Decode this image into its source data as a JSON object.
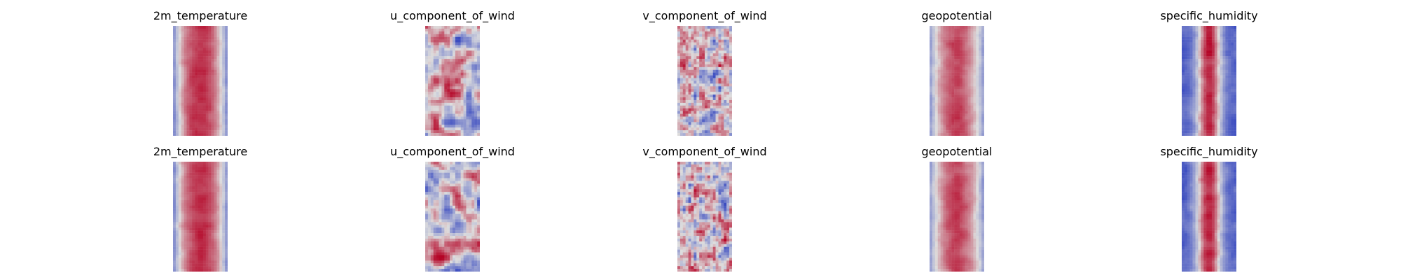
{
  "figure": {
    "rows": [
      {
        "panels": [
          {
            "title": "2m_temperature",
            "style": "temp"
          },
          {
            "title": "u_component_of_wind",
            "style": "uwind"
          },
          {
            "title": "v_component_of_wind",
            "style": "vwind"
          },
          {
            "title": "geopotential",
            "style": "geo"
          },
          {
            "title": "specific_humidity",
            "style": "hum"
          }
        ]
      },
      {
        "panels": [
          {
            "title": "2m_temperature",
            "style": "temp"
          },
          {
            "title": "u_component_of_wind",
            "style": "uwind"
          },
          {
            "title": "v_component_of_wind",
            "style": "vwind"
          },
          {
            "title": "geopotential",
            "style": "geo"
          },
          {
            "title": "specific_humidity",
            "style": "hum"
          }
        ]
      }
    ],
    "colormap": "coolwarm",
    "colors": {
      "low": "#3b4cc0",
      "mid": "#dddddd",
      "high": "#b40426"
    }
  }
}
